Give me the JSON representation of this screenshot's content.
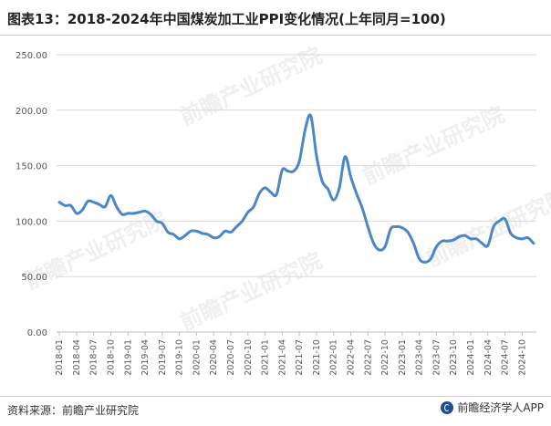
{
  "header": {
    "title": "图表13：2018-2024年中国煤炭加工业PPI变化情况(上年同月=100)"
  },
  "footer": {
    "source": "资料来源：前瞻产业研究院",
    "brand": "前瞻经济学人APP"
  },
  "watermark": {
    "text": "前瞻产业研究院"
  },
  "colors": {
    "line": "#4a87c8",
    "grid": "#d9d9d9",
    "axis": "#bfbfbf"
  },
  "chart_data": {
    "type": "line",
    "title": "",
    "xlabel": "",
    "ylabel": "",
    "ylim": [
      0,
      250
    ],
    "y_ticks": [
      "0.00",
      "50.00",
      "100.00",
      "150.00",
      "200.00",
      "250.00"
    ],
    "x_tick_labels": [
      "2018-01",
      "2018-04",
      "2018-07",
      "2018-10",
      "2019-01",
      "2019-04",
      "2019-07",
      "2019-10",
      "2020-01",
      "2020-04",
      "2020-07",
      "2020-10",
      "2021-01",
      "2021-04",
      "2021-07",
      "2021-10",
      "2022-01",
      "2022-04",
      "2022-07",
      "2022-10",
      "2023-01",
      "2023-04",
      "2023-07",
      "2023-10",
      "2024-01",
      "2024-04",
      "2024-07",
      "2024-10"
    ],
    "grid": "horizontal",
    "series": [
      {
        "name": "",
        "x": [
          "2018-01",
          "2018-02",
          "2018-03",
          "2018-04",
          "2018-05",
          "2018-06",
          "2018-07",
          "2018-08",
          "2018-09",
          "2018-10",
          "2018-11",
          "2018-12",
          "2019-01",
          "2019-02",
          "2019-03",
          "2019-04",
          "2019-05",
          "2019-06",
          "2019-07",
          "2019-08",
          "2019-09",
          "2019-10",
          "2019-11",
          "2019-12",
          "2020-01",
          "2020-02",
          "2020-03",
          "2020-04",
          "2020-05",
          "2020-06",
          "2020-07",
          "2020-08",
          "2020-09",
          "2020-10",
          "2020-11",
          "2020-12",
          "2021-01",
          "2021-02",
          "2021-03",
          "2021-04",
          "2021-05",
          "2021-06",
          "2021-07",
          "2021-08",
          "2021-09",
          "2021-10",
          "2021-11",
          "2021-12",
          "2022-01",
          "2022-02",
          "2022-03",
          "2022-04",
          "2022-05",
          "2022-06",
          "2022-07",
          "2022-08",
          "2022-09",
          "2022-10",
          "2022-11",
          "2022-12",
          "2023-01",
          "2023-02",
          "2023-03",
          "2023-04",
          "2023-05",
          "2023-06",
          "2023-07",
          "2023-08",
          "2023-09",
          "2023-10",
          "2023-11",
          "2023-12",
          "2024-01",
          "2024-02",
          "2024-03",
          "2024-04",
          "2024-05",
          "2024-06",
          "2024-07",
          "2024-08",
          "2024-09",
          "2024-10",
          "2024-11",
          "2024-12"
        ],
        "values": [
          117,
          114,
          114,
          107,
          110,
          118,
          117,
          115,
          113,
          123,
          113,
          106,
          107,
          107,
          108,
          109,
          106,
          100,
          98,
          90,
          88,
          84,
          87,
          91,
          91,
          89,
          88,
          85,
          86,
          91,
          90,
          95,
          100,
          108,
          113,
          125,
          130,
          126,
          124,
          146,
          145,
          145,
          154,
          182,
          195,
          159,
          136,
          129,
          119,
          130,
          158,
          140,
          125,
          112,
          95,
          80,
          74,
          77,
          93,
          95,
          94,
          90,
          80,
          66,
          63,
          66,
          77,
          82,
          82,
          83,
          86,
          87,
          84,
          84,
          80,
          78,
          95,
          100,
          102,
          89,
          85,
          84,
          85,
          80
        ]
      }
    ]
  }
}
